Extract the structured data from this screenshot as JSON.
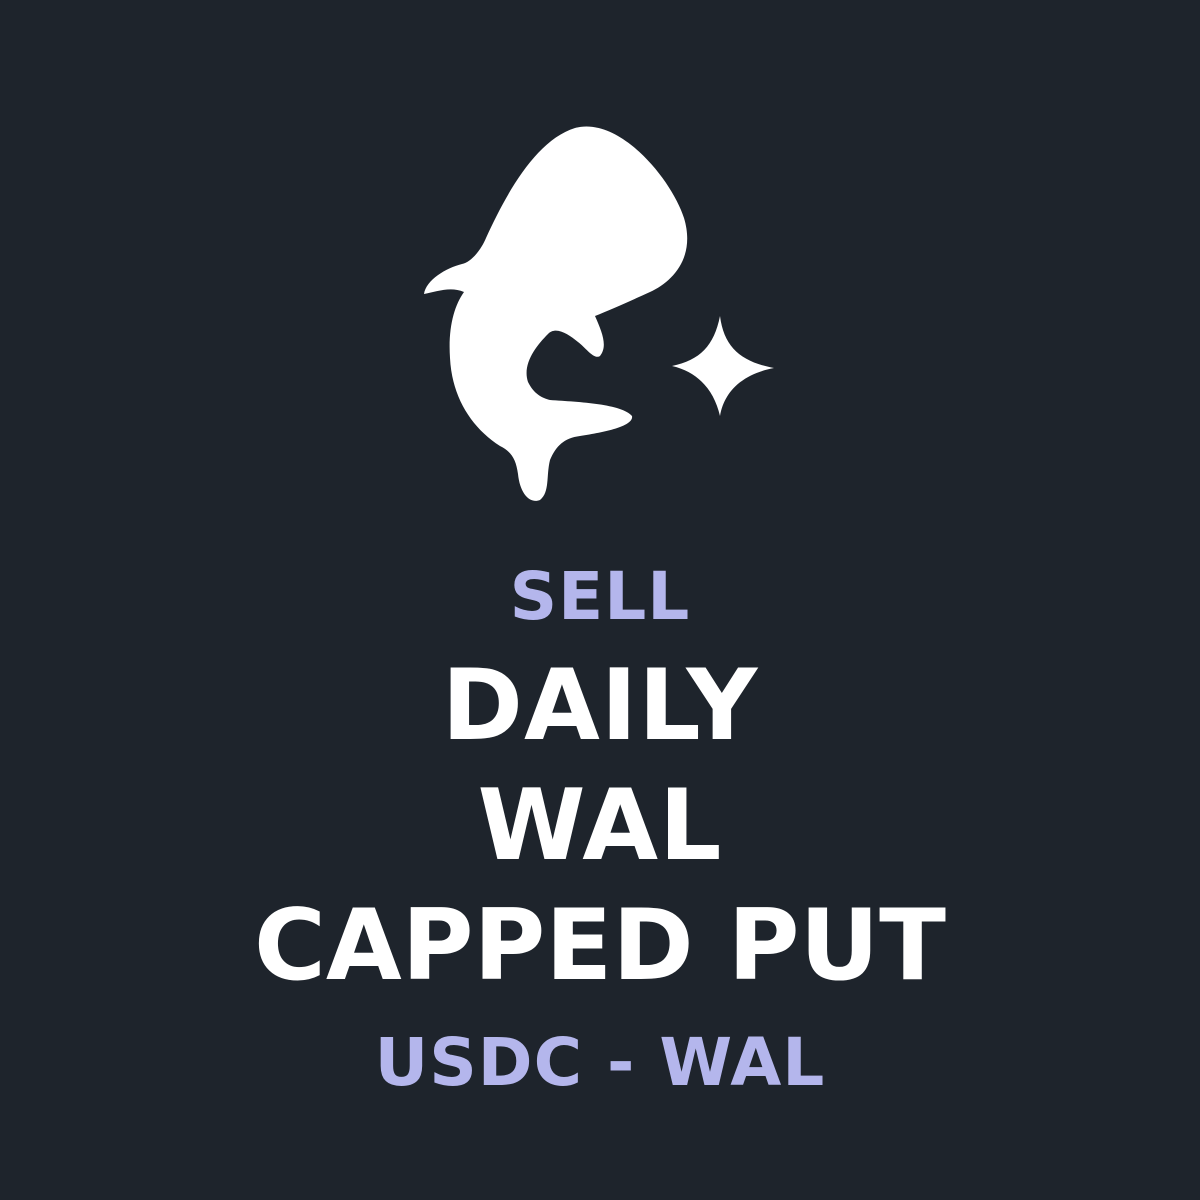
{
  "colors": {
    "background": "#1e242c",
    "accent": "#b4b6ec",
    "text": "#ffffff"
  },
  "logo": {
    "icon": "whale-shark-icon",
    "sparkle_icon": "sparkle-icon"
  },
  "action": "SELL",
  "title_lines": [
    "DAILY",
    "WAL",
    "CAPPED PUT"
  ],
  "pair": "USDC - WAL"
}
